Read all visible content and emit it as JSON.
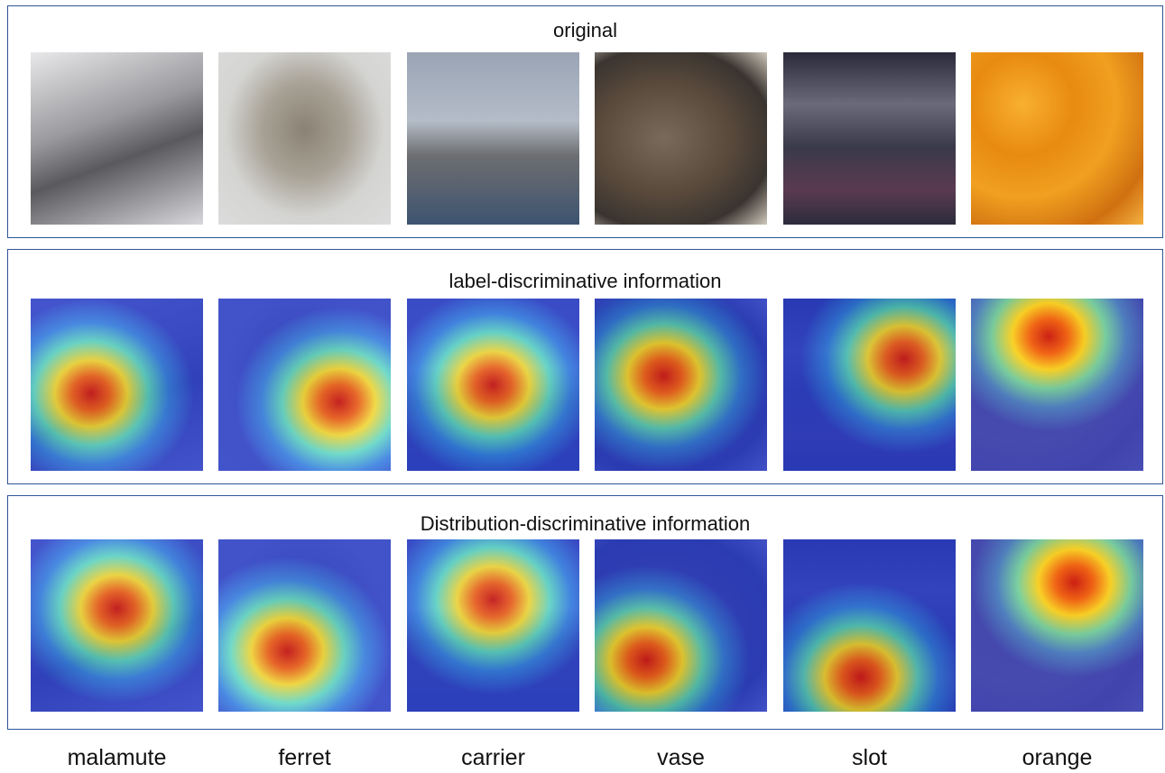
{
  "panels": [
    {
      "title": "original"
    },
    {
      "title": "label-discriminative information"
    },
    {
      "title": "Distribution-discriminative information"
    }
  ],
  "labels": [
    "malamute",
    "ferret",
    "carrier",
    "vase",
    "slot",
    "orange"
  ]
}
